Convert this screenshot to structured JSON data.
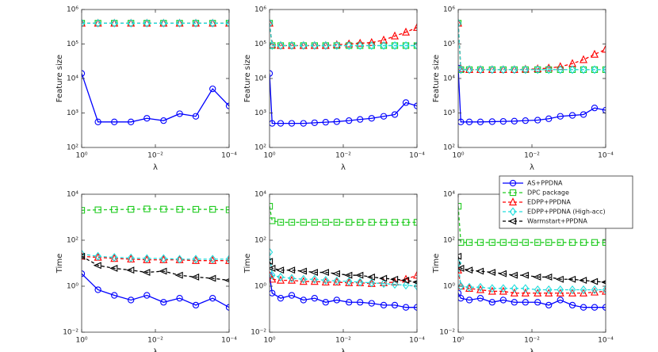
{
  "chart_data": [
    {
      "type": "line",
      "ylabel": "Feature size",
      "xlabel": "λ",
      "xlog": true,
      "ylog": true,
      "xlim": [
        1,
        0.0001
      ],
      "xticks": [
        {
          "value": 1,
          "label": "10⁰"
        },
        {
          "value": 0.01,
          "label": "10⁻²"
        },
        {
          "value": 0.0001,
          "label": "10⁻⁴"
        }
      ],
      "ylim": [
        100,
        1000000
      ],
      "yticks": [
        {
          "value": 100,
          "label": "10²"
        },
        {
          "value": 1000,
          "label": "10³"
        },
        {
          "value": 10000,
          "label": "10⁴"
        },
        {
          "value": 100000,
          "label": "10⁵"
        },
        {
          "value": 1000000,
          "label": "10⁶"
        }
      ],
      "x": [
        1,
        0.36,
        0.13,
        0.046,
        0.017,
        0.006,
        0.0022,
        0.0008,
        0.00028,
        0.0001
      ],
      "series": [
        {
          "name": "AS+PPDNA",
          "color": "#0000ff",
          "marker": "o",
          "linestyle": "-",
          "values": [
            14000,
            550,
            550,
            550,
            700,
            600,
            950,
            800,
            5000,
            1600
          ]
        },
        {
          "name": "DPC package",
          "color": "#22cc22",
          "marker": "s",
          "linestyle": "--",
          "values": [
            400000,
            400000,
            400000,
            400000,
            400000,
            400000,
            400000,
            400000,
            400000,
            400000
          ]
        },
        {
          "name": "EDPP+PPDNA",
          "color": "#ff0000",
          "marker": "^",
          "linestyle": "--",
          "values": [
            400000,
            400000,
            400000,
            400000,
            400000,
            400000,
            400000,
            400000,
            400000,
            400000
          ]
        },
        {
          "name": "EDPP+PPDNA (High-acc)",
          "color": "#22dddd",
          "marker": "d",
          "linestyle": "--",
          "values": [
            400000,
            400000,
            400000,
            400000,
            400000,
            400000,
            400000,
            400000,
            400000,
            400000
          ]
        }
      ]
    },
    {
      "type": "line",
      "ylabel": "Feature size",
      "xlabel": "λ",
      "xlog": true,
      "ylog": true,
      "xlim": [
        1,
        0.0001
      ],
      "xticks": [
        {
          "value": 1,
          "label": "10⁰"
        },
        {
          "value": 0.01,
          "label": "10⁻²"
        },
        {
          "value": 0.0001,
          "label": "10⁻⁴"
        }
      ],
      "ylim": [
        100,
        1000000
      ],
      "yticks": [
        {
          "value": 100,
          "label": "10²"
        },
        {
          "value": 1000,
          "label": "10³"
        },
        {
          "value": 10000,
          "label": "10⁴"
        },
        {
          "value": 100000,
          "label": "10⁵"
        },
        {
          "value": 1000000,
          "label": "10⁶"
        }
      ],
      "x": [
        1,
        0.85,
        0.5,
        0.25,
        0.12,
        0.06,
        0.03,
        0.015,
        0.007,
        0.0035,
        0.0017,
        0.0008,
        0.0004,
        0.0002,
        0.0001
      ],
      "series": [
        {
          "name": "AS+PPDNA",
          "color": "#0000ff",
          "marker": "o",
          "linestyle": "-",
          "values": [
            14000,
            500,
            500,
            500,
            500,
            520,
            540,
            560,
            600,
            650,
            700,
            800,
            900,
            2000,
            1600
          ]
        },
        {
          "name": "DPC package",
          "color": "#22cc22",
          "marker": "s",
          "linestyle": "--",
          "values": [
            400000,
            90000,
            90000,
            90000,
            90000,
            90000,
            90000,
            90000,
            90000,
            90000,
            90000,
            90000,
            90000,
            90000,
            90000
          ]
        },
        {
          "name": "EDPP+PPDNA",
          "color": "#ff0000",
          "marker": "^",
          "linestyle": "--",
          "values": [
            400000,
            95000,
            90000,
            90000,
            90000,
            90000,
            90000,
            95000,
            100000,
            105000,
            110000,
            130000,
            170000,
            220000,
            300000
          ]
        },
        {
          "name": "EDPP+PPDNA (High-acc)",
          "color": "#22dddd",
          "marker": "d",
          "linestyle": "--",
          "values": [
            400000,
            90000,
            90000,
            90000,
            90000,
            90000,
            90000,
            90000,
            90000,
            90000,
            90000,
            90000,
            90000,
            90000,
            90000
          ]
        }
      ]
    },
    {
      "type": "line",
      "ylabel": "Feature size",
      "xlabel": "λ",
      "xlog": true,
      "ylog": true,
      "xlim": [
        1,
        0.0001
      ],
      "xticks": [
        {
          "value": 1,
          "label": "10⁰"
        },
        {
          "value": 0.01,
          "label": "10⁻²"
        },
        {
          "value": 0.0001,
          "label": "10⁻⁴"
        }
      ],
      "ylim": [
        100,
        1000000
      ],
      "yticks": [
        {
          "value": 100,
          "label": "10²"
        },
        {
          "value": 1000,
          "label": "10³"
        },
        {
          "value": 10000,
          "label": "10⁴"
        },
        {
          "value": 100000,
          "label": "10⁵"
        },
        {
          "value": 1000000,
          "label": "10⁶"
        }
      ],
      "x": [
        1,
        0.85,
        0.5,
        0.25,
        0.12,
        0.06,
        0.03,
        0.015,
        0.007,
        0.0035,
        0.0017,
        0.0008,
        0.0004,
        0.0002,
        0.0001
      ],
      "series": [
        {
          "name": "AS+PPDNA",
          "color": "#0000ff",
          "marker": "o",
          "linestyle": "-",
          "values": [
            20000,
            550,
            550,
            550,
            560,
            570,
            580,
            600,
            620,
            680,
            800,
            850,
            900,
            1400,
            1200
          ]
        },
        {
          "name": "DPC package",
          "color": "#22cc22",
          "marker": "s",
          "linestyle": "--",
          "values": [
            400000,
            18000,
            18000,
            18000,
            18000,
            18000,
            18000,
            18000,
            18000,
            18000,
            18000,
            18000,
            18000,
            18000,
            18000
          ]
        },
        {
          "name": "EDPP+PPDNA",
          "color": "#ff0000",
          "marker": "^",
          "linestyle": "--",
          "values": [
            400000,
            19000,
            18000,
            18000,
            18000,
            18000,
            18000,
            18500,
            19000,
            20000,
            22000,
            27000,
            35000,
            50000,
            70000
          ]
        },
        {
          "name": "EDPP+PPDNA (High-acc)",
          "color": "#22dddd",
          "marker": "d",
          "linestyle": "--",
          "values": [
            400000,
            18000,
            18000,
            18000,
            18000,
            18000,
            18000,
            18000,
            18000,
            18000,
            18000,
            18000,
            18000,
            18000,
            18000
          ]
        }
      ]
    },
    {
      "type": "line",
      "ylabel": "Time",
      "xlabel": "λ",
      "xlog": true,
      "ylog": true,
      "xlim": [
        1,
        0.0001
      ],
      "xticks": [
        {
          "value": 1,
          "label": "10⁰"
        },
        {
          "value": 0.01,
          "label": "10⁻²"
        },
        {
          "value": 0.0001,
          "label": "10⁻⁴"
        }
      ],
      "ylim": [
        0.01,
        10000
      ],
      "yticks": [
        {
          "value": 0.01,
          "label": "10⁻²"
        },
        {
          "value": 1,
          "label": "10⁰"
        },
        {
          "value": 100,
          "label": "10²"
        },
        {
          "value": 10000,
          "label": "10⁴"
        }
      ],
      "x": [
        1,
        0.36,
        0.13,
        0.046,
        0.017,
        0.006,
        0.0022,
        0.0008,
        0.00028,
        0.0001
      ],
      "series": [
        {
          "name": "AS+PPDNA",
          "color": "#0000ff",
          "marker": "o",
          "linestyle": "-",
          "values": [
            3.5,
            0.7,
            0.4,
            0.25,
            0.4,
            0.2,
            0.3,
            0.15,
            0.3,
            0.12
          ]
        },
        {
          "name": "DPC package",
          "color": "#22cc22",
          "marker": "s",
          "linestyle": "--",
          "values": [
            2000,
            2100,
            2150,
            2200,
            2300,
            2250,
            2200,
            2200,
            2200,
            2100
          ]
        },
        {
          "name": "EDPP+PPDNA",
          "color": "#ff0000",
          "marker": "^",
          "linestyle": "--",
          "values": [
            20,
            18,
            16,
            15,
            14,
            14,
            14,
            13,
            13,
            13
          ]
        },
        {
          "name": "EDPP+PPDNA (High-acc)",
          "color": "#22dddd",
          "marker": "d",
          "linestyle": "--",
          "values": [
            25,
            20,
            18,
            17,
            16,
            16,
            15,
            15,
            15,
            15
          ]
        },
        {
          "name": "Warmstart+PPDNA",
          "color": "#000000",
          "marker": "<",
          "linestyle": "--",
          "values": [
            20,
            8,
            6,
            5,
            4,
            4.5,
            3,
            2.5,
            2.2,
            1.8
          ]
        }
      ]
    },
    {
      "type": "line",
      "ylabel": "Time",
      "xlabel": "λ",
      "xlog": true,
      "ylog": true,
      "xlim": [
        1,
        0.0001
      ],
      "xticks": [
        {
          "value": 1,
          "label": "10⁰"
        },
        {
          "value": 0.01,
          "label": "10⁻²"
        },
        {
          "value": 0.0001,
          "label": "10⁻⁴"
        }
      ],
      "ylim": [
        0.01,
        10000
      ],
      "yticks": [
        {
          "value": 0.01,
          "label": "10⁻²"
        },
        {
          "value": 1,
          "label": "10⁰"
        },
        {
          "value": 100,
          "label": "10²"
        },
        {
          "value": 10000,
          "label": "10⁴"
        }
      ],
      "x": [
        1,
        0.85,
        0.5,
        0.25,
        0.12,
        0.06,
        0.03,
        0.015,
        0.007,
        0.0035,
        0.0017,
        0.0008,
        0.0004,
        0.0002,
        0.0001
      ],
      "series": [
        {
          "name": "AS+PPDNA",
          "color": "#0000ff",
          "marker": "o",
          "linestyle": "-",
          "values": [
            3,
            0.5,
            0.3,
            0.4,
            0.25,
            0.3,
            0.2,
            0.25,
            0.2,
            0.2,
            0.18,
            0.15,
            0.15,
            0.12,
            0.12
          ]
        },
        {
          "name": "DPC package",
          "color": "#22cc22",
          "marker": "s",
          "linestyle": "--",
          "values": [
            3000,
            700,
            600,
            600,
            600,
            600,
            600,
            600,
            600,
            600,
            600,
            600,
            600,
            600,
            600
          ]
        },
        {
          "name": "EDPP+PPDNA",
          "color": "#ff0000",
          "marker": "^",
          "linestyle": "--",
          "values": [
            3,
            2,
            1.8,
            1.8,
            1.6,
            1.6,
            1.5,
            1.5,
            1.4,
            1.4,
            1.3,
            1.4,
            1.5,
            2,
            3
          ]
        },
        {
          "name": "EDPP+PPDNA (High-acc)",
          "color": "#22dddd",
          "marker": "d",
          "linestyle": "--",
          "values": [
            30,
            3,
            2.5,
            2.2,
            2,
            2,
            1.8,
            1.7,
            1.6,
            1.5,
            1.4,
            1.3,
            1.2,
            1.1,
            1
          ]
        },
        {
          "name": "Warmstart+PPDNA",
          "color": "#000000",
          "marker": "<",
          "linestyle": "--",
          "values": [
            12,
            6,
            5,
            5,
            4.5,
            4,
            4,
            3.5,
            3,
            3,
            2.5,
            2.2,
            2,
            1.8,
            1.5
          ]
        }
      ]
    },
    {
      "type": "line",
      "ylabel": "Time",
      "xlabel": "λ",
      "xlog": true,
      "ylog": true,
      "legend": "northeast",
      "xlim": [
        1,
        0.0001
      ],
      "xticks": [
        {
          "value": 1,
          "label": "10⁰"
        },
        {
          "value": 0.01,
          "label": "10⁻²"
        },
        {
          "value": 0.0001,
          "label": "10⁻⁴"
        }
      ],
      "ylim": [
        0.01,
        10000
      ],
      "yticks": [
        {
          "value": 0.01,
          "label": "10⁻²"
        },
        {
          "value": 1,
          "label": "10⁰"
        },
        {
          "value": 100,
          "label": "10²"
        },
        {
          "value": 10000,
          "label": "10⁴"
        }
      ],
      "x": [
        1,
        0.85,
        0.5,
        0.25,
        0.12,
        0.06,
        0.03,
        0.015,
        0.007,
        0.0035,
        0.0017,
        0.0008,
        0.0004,
        0.0002,
        0.0001
      ],
      "series": [
        {
          "name": "AS+PPDNA",
          "color": "#0000ff",
          "marker": "o",
          "linestyle": "-",
          "values": [
            0.5,
            0.3,
            0.25,
            0.3,
            0.2,
            0.25,
            0.2,
            0.2,
            0.2,
            0.15,
            0.25,
            0.15,
            0.12,
            0.12,
            0.12
          ]
        },
        {
          "name": "DPC package",
          "color": "#22cc22",
          "marker": "s",
          "linestyle": "--",
          "values": [
            3000,
            80,
            80,
            80,
            80,
            80,
            80,
            80,
            80,
            80,
            80,
            80,
            80,
            80,
            80
          ]
        },
        {
          "name": "EDPP+PPDNA",
          "color": "#ff0000",
          "marker": "^",
          "linestyle": "--",
          "values": [
            5,
            1,
            0.8,
            0.7,
            0.6,
            0.6,
            0.5,
            0.5,
            0.5,
            0.5,
            0.5,
            0.5,
            0.5,
            0.55,
            0.6
          ]
        },
        {
          "name": "EDPP+PPDNA (High-acc)",
          "color": "#22dddd",
          "marker": "d",
          "linestyle": "--",
          "values": [
            10,
            1,
            0.9,
            0.9,
            0.8,
            0.8,
            0.8,
            0.8,
            0.7,
            0.7,
            0.7,
            0.7,
            0.7,
            0.7,
            0.7
          ]
        },
        {
          "name": "Warmstart+PPDNA",
          "color": "#000000",
          "marker": "<",
          "linestyle": "--",
          "values": [
            20,
            6,
            5,
            4.5,
            4,
            3.5,
            3,
            3,
            2.5,
            2.5,
            2,
            2,
            1.8,
            1.6,
            1.5
          ]
        }
      ]
    }
  ]
}
